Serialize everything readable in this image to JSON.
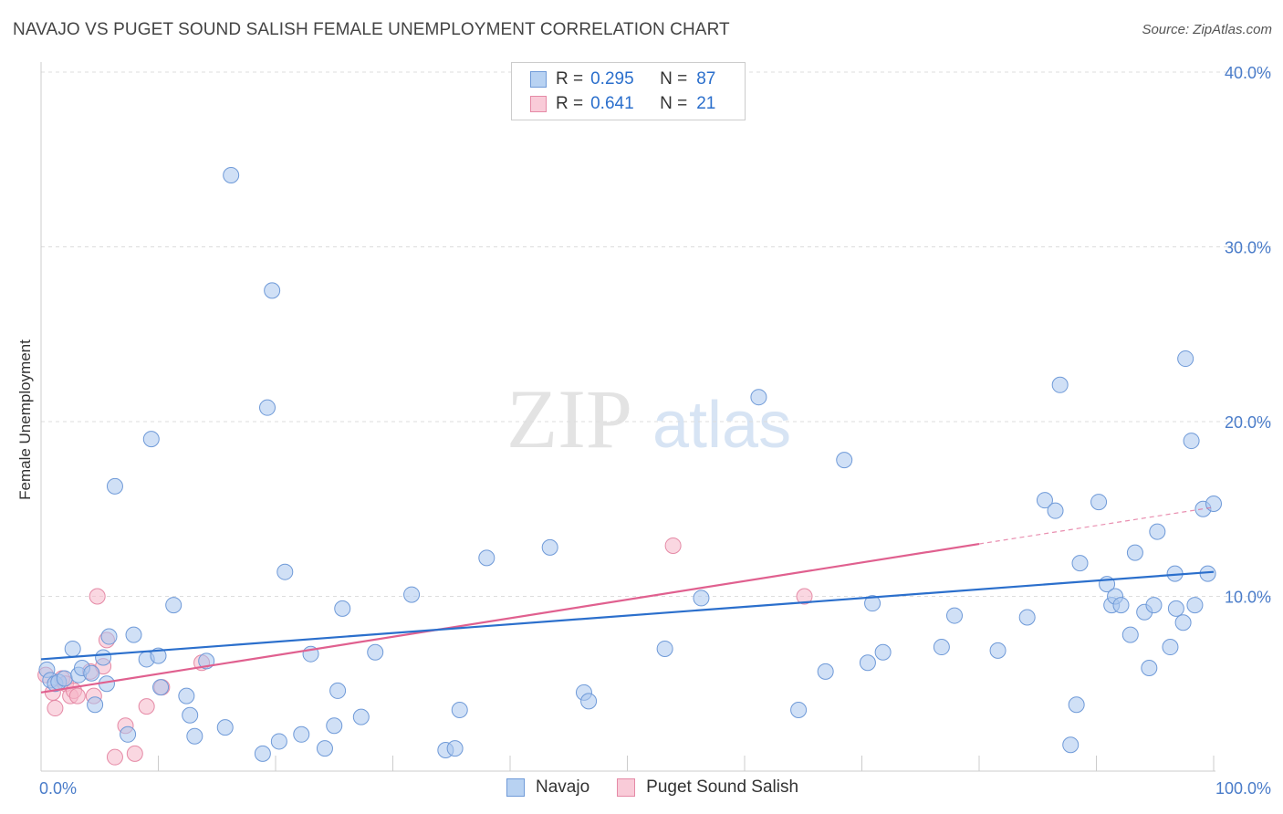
{
  "header": {
    "title": "NAVAJO VS PUGET SOUND SALISH FEMALE UNEMPLOYMENT CORRELATION CHART",
    "source": "Source: ZipAtlas.com"
  },
  "watermark": {
    "zip": "ZIP",
    "atlas": "atlas"
  },
  "legend_top": {
    "rows": [
      {
        "r_label": "R =",
        "r_value": "0.295",
        "n_label": "N =",
        "n_value": "87"
      },
      {
        "r_label": "R =",
        "r_value": "0.641",
        "n_label": "N =",
        "n_value": "21"
      }
    ]
  },
  "legend_bottom": {
    "items": [
      {
        "label": "Navajo"
      },
      {
        "label": "Puget Sound Salish"
      }
    ]
  },
  "colors": {
    "navajo_fill": "#a9c7ef",
    "navajo_stroke": "#6f9ad8",
    "navajo_line": "#2b6fcc",
    "salish_fill": "#f6b6c8",
    "salish_stroke": "#e58aa6",
    "salish_line": "#e0608f",
    "grid": "#dddddd",
    "tick_text": "#4a7cc9"
  },
  "chart_data": {
    "type": "scatter",
    "title": "NAVAJO VS PUGET SOUND SALISH FEMALE UNEMPLOYMENT CORRELATION CHART",
    "xlabel": "",
    "ylabel": "Female Unemployment",
    "xlim": [
      0,
      100
    ],
    "ylim": [
      0,
      40
    ],
    "x_tick_labels": [
      "0.0%",
      "100.0%"
    ],
    "y_ticks": [
      10,
      20,
      30,
      40
    ],
    "y_tick_labels": [
      "10.0%",
      "20.0%",
      "30.0%",
      "40.0%"
    ],
    "grid": "horizontal dashed",
    "legend_placement": "top-center and bottom",
    "series": [
      {
        "name": "Navajo",
        "R": 0.295,
        "N": 87,
        "trend": {
          "x": [
            0,
            100
          ],
          "y": [
            6.4,
            11.4
          ]
        },
        "points": [
          [
            0.5,
            5.8
          ],
          [
            0.8,
            5.2
          ],
          [
            1.2,
            5.0
          ],
          [
            1.5,
            5.1
          ],
          [
            2.0,
            5.3
          ],
          [
            2.7,
            7.0
          ],
          [
            3.2,
            5.5
          ],
          [
            3.5,
            5.9
          ],
          [
            4.3,
            5.6
          ],
          [
            4.6,
            3.8
          ],
          [
            5.3,
            6.5
          ],
          [
            5.6,
            5.0
          ],
          [
            5.8,
            7.7
          ],
          [
            6.3,
            16.3
          ],
          [
            7.4,
            2.1
          ],
          [
            7.9,
            7.8
          ],
          [
            9.0,
            6.4
          ],
          [
            9.4,
            19.0
          ],
          [
            10.0,
            6.6
          ],
          [
            10.2,
            4.8
          ],
          [
            11.3,
            9.5
          ],
          [
            12.4,
            4.3
          ],
          [
            12.7,
            3.2
          ],
          [
            13.1,
            2.0
          ],
          [
            14.1,
            6.3
          ],
          [
            15.7,
            2.5
          ],
          [
            16.2,
            34.1
          ],
          [
            18.9,
            1.0
          ],
          [
            19.3,
            20.8
          ],
          [
            19.7,
            27.5
          ],
          [
            20.3,
            1.7
          ],
          [
            20.8,
            11.4
          ],
          [
            22.2,
            2.1
          ],
          [
            23.0,
            6.7
          ],
          [
            24.2,
            1.3
          ],
          [
            25.0,
            2.6
          ],
          [
            25.3,
            4.6
          ],
          [
            25.7,
            9.3
          ],
          [
            27.3,
            3.1
          ],
          [
            28.5,
            6.8
          ],
          [
            31.6,
            10.1
          ],
          [
            34.5,
            1.2
          ],
          [
            35.3,
            1.3
          ],
          [
            35.7,
            3.5
          ],
          [
            38.0,
            12.2
          ],
          [
            43.4,
            12.8
          ],
          [
            46.3,
            4.5
          ],
          [
            46.7,
            4.0
          ],
          [
            53.2,
            7.0
          ],
          [
            56.3,
            9.9
          ],
          [
            61.2,
            21.4
          ],
          [
            64.6,
            3.5
          ],
          [
            66.9,
            5.7
          ],
          [
            68.5,
            17.8
          ],
          [
            70.5,
            6.2
          ],
          [
            70.9,
            9.6
          ],
          [
            71.8,
            6.8
          ],
          [
            76.8,
            7.1
          ],
          [
            77.9,
            8.9
          ],
          [
            81.6,
            6.9
          ],
          [
            84.1,
            8.8
          ],
          [
            85.6,
            15.5
          ],
          [
            86.5,
            14.9
          ],
          [
            86.9,
            22.1
          ],
          [
            87.8,
            1.5
          ],
          [
            88.3,
            3.8
          ],
          [
            88.6,
            11.9
          ],
          [
            90.2,
            15.4
          ],
          [
            90.9,
            10.7
          ],
          [
            91.3,
            9.5
          ],
          [
            91.6,
            10.0
          ],
          [
            92.1,
            9.5
          ],
          [
            92.9,
            7.8
          ],
          [
            93.3,
            12.5
          ],
          [
            94.1,
            9.1
          ],
          [
            94.5,
            5.9
          ],
          [
            94.9,
            9.5
          ],
          [
            95.2,
            13.7
          ],
          [
            96.3,
            7.1
          ],
          [
            96.7,
            11.3
          ],
          [
            96.8,
            9.3
          ],
          [
            97.4,
            8.5
          ],
          [
            97.6,
            23.6
          ],
          [
            98.1,
            18.9
          ],
          [
            98.4,
            9.5
          ],
          [
            99.1,
            15.0
          ],
          [
            99.5,
            11.3
          ],
          [
            100.0,
            15.3
          ]
        ]
      },
      {
        "name": "Puget Sound Salish",
        "R": 0.641,
        "N": 21,
        "trend": {
          "x": [
            0,
            80
          ],
          "y": [
            4.5,
            13.0
          ],
          "dashed_extension": {
            "x": [
              80,
              100
            ],
            "y": [
              13.0,
              15.1
            ]
          }
        },
        "points": [
          [
            0.4,
            5.5
          ],
          [
            1.0,
            4.5
          ],
          [
            1.2,
            3.6
          ],
          [
            1.8,
            5.3
          ],
          [
            2.1,
            5.0
          ],
          [
            2.5,
            4.3
          ],
          [
            2.8,
            4.6
          ],
          [
            3.1,
            4.3
          ],
          [
            4.2,
            5.7
          ],
          [
            4.5,
            4.3
          ],
          [
            4.8,
            10.0
          ],
          [
            5.3,
            6.0
          ],
          [
            5.6,
            7.5
          ],
          [
            6.3,
            0.8
          ],
          [
            7.2,
            2.6
          ],
          [
            8.0,
            1.0
          ],
          [
            9.0,
            3.7
          ],
          [
            10.3,
            4.8
          ],
          [
            13.7,
            6.2
          ],
          [
            53.9,
            12.9
          ],
          [
            65.1,
            10.0
          ]
        ]
      }
    ]
  }
}
